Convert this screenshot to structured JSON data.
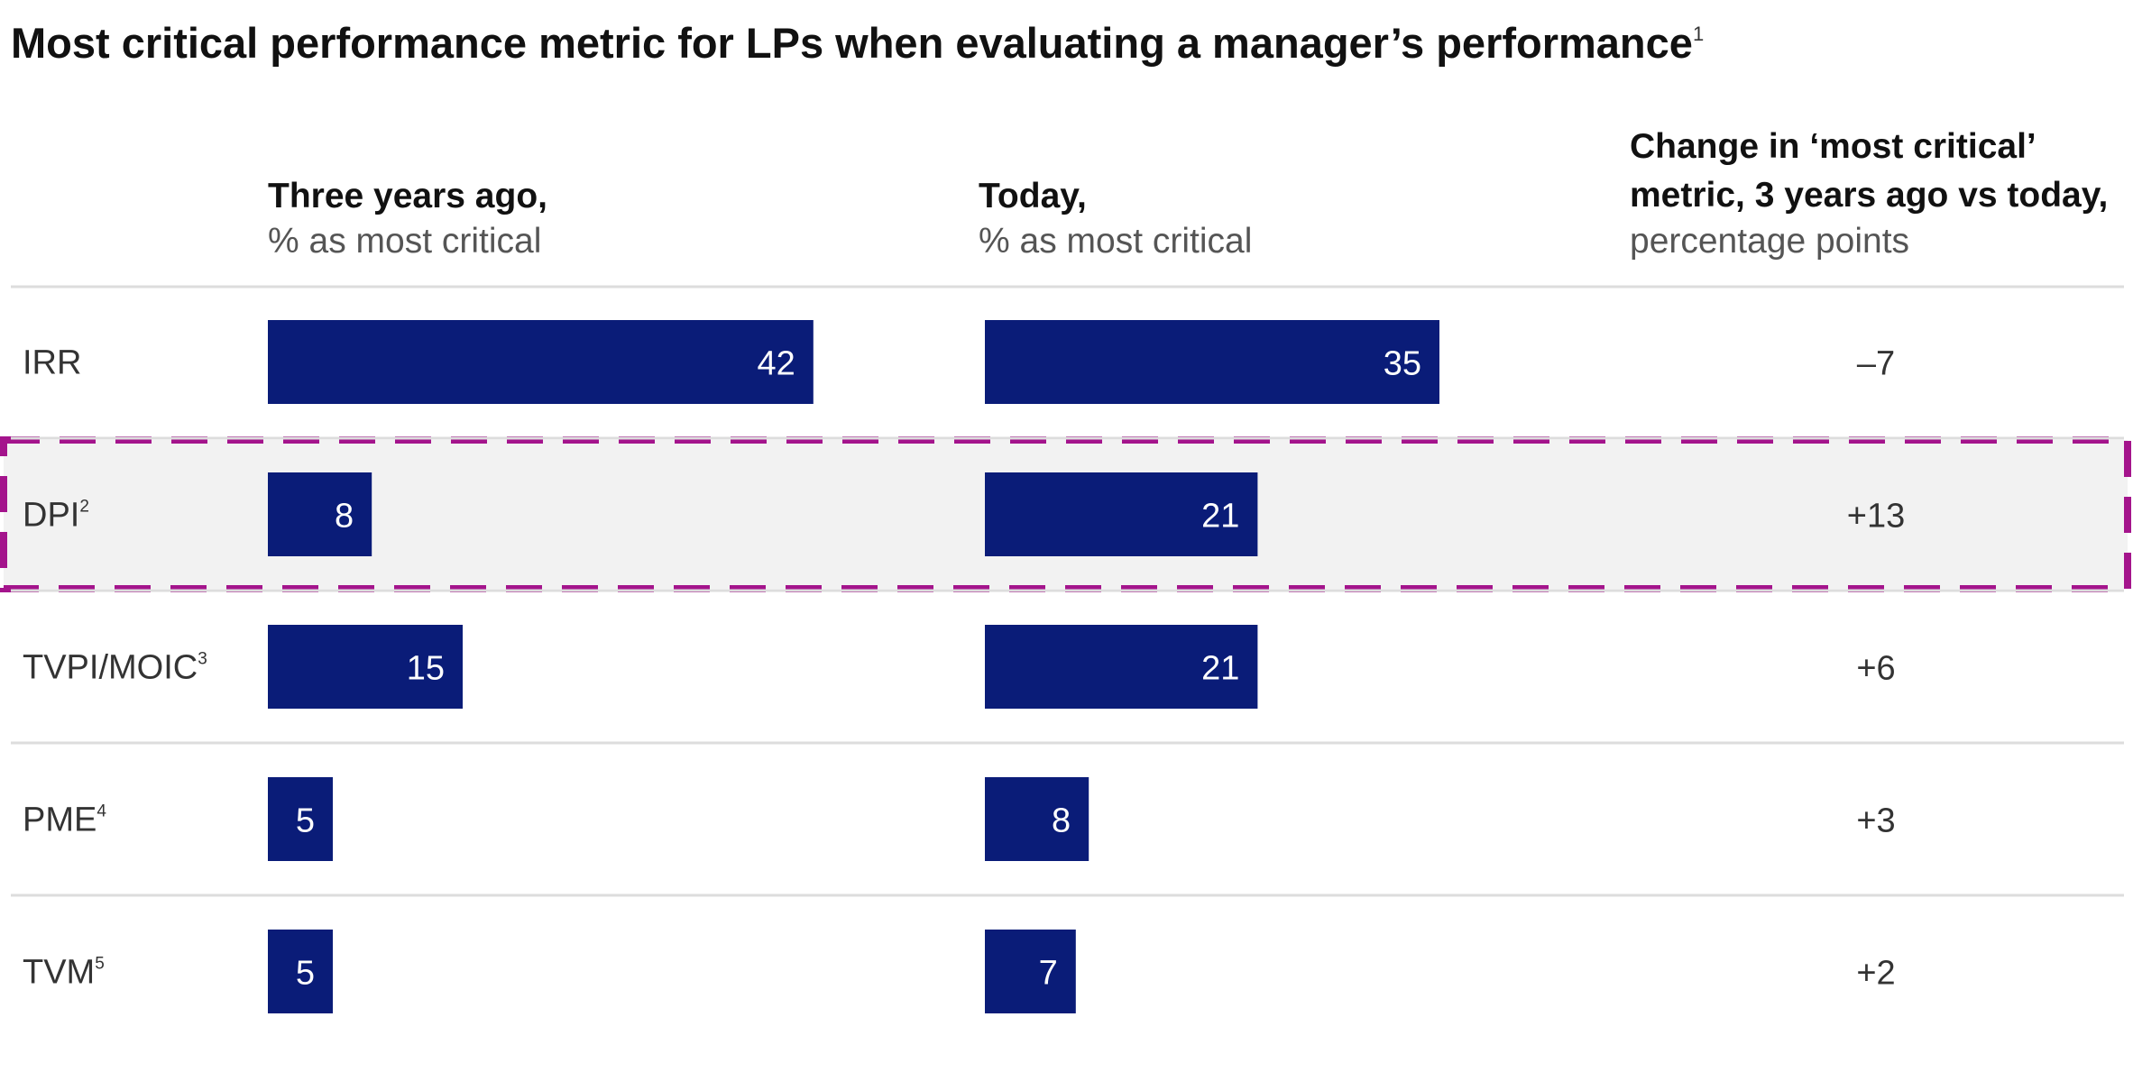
{
  "chart_data": {
    "type": "bar",
    "title": "Most critical performance metric for LPs when evaluating a manager’s performance",
    "title_footnote": "1",
    "columns": {
      "three_years_ago": {
        "title": "Three years ago,",
        "subtitle": "% as most critical"
      },
      "today": {
        "title": "Today,",
        "subtitle": "% as most critical"
      },
      "change": {
        "title_line1": "Change in ‘most critical’",
        "title_line2": "metric, 3 years ago vs today,",
        "subtitle": "percentage points"
      }
    },
    "categories": [
      "IRR",
      "DPI",
      "TVPI/MOIC",
      "PME",
      "TVM"
    ],
    "footnotes": [
      "",
      "2",
      "3",
      "4",
      "5"
    ],
    "series": [
      {
        "name": "Three years ago,",
        "values": [
          42,
          8,
          15,
          5,
          5
        ]
      },
      {
        "name": "Today,",
        "values": [
          35,
          21,
          21,
          8,
          7
        ]
      }
    ],
    "change_labels": [
      "–7",
      "+13",
      "+6",
      "+3",
      "+2"
    ],
    "highlighted_category": "DPI",
    "xlim": [
      0,
      50
    ]
  },
  "colors": {
    "bar": "#0a1c78",
    "highlight_border": "#a4148c",
    "highlight_fill": "#f2f2f2",
    "divider": "#dddddd"
  }
}
